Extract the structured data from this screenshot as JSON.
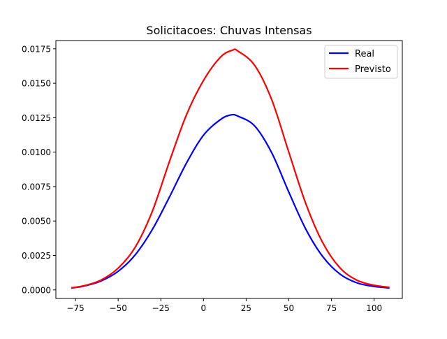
{
  "chart_data": {
    "type": "line",
    "title": "Solicitacoes: Chuvas Intensas",
    "xlabel": "",
    "ylabel": "",
    "xlim": [
      -86.5,
      116.5
    ],
    "ylim": [
      -0.00062,
      0.0181
    ],
    "x_ticks": [
      -75,
      -50,
      -25,
      0,
      25,
      50,
      75,
      100
    ],
    "x_tick_labels": [
      "−75",
      "−50",
      "−25",
      "0",
      "25",
      "50",
      "75",
      "100"
    ],
    "y_ticks": [
      0.0,
      0.0025,
      0.005,
      0.0075,
      0.01,
      0.0125,
      0.015,
      0.0175
    ],
    "y_tick_labels": [
      "0.0000",
      "0.0025",
      "0.0050",
      "0.0075",
      "0.0100",
      "0.0125",
      "0.0150",
      "0.0175"
    ],
    "grid": false,
    "legend_position": "top-right",
    "series": [
      {
        "name": "Real",
        "color": "#0000ff",
        "x": [
          -77.5,
          -70,
          -60,
          -50,
          -40,
          -30,
          -20,
          -10,
          0,
          10,
          16,
          20,
          30,
          40,
          50,
          60,
          70,
          80,
          90,
          100,
          109
        ],
        "y": [
          0.00014,
          0.00028,
          0.00065,
          0.00135,
          0.00255,
          0.00438,
          0.00673,
          0.0092,
          0.01123,
          0.01237,
          0.0127,
          0.01262,
          0.0119,
          0.00995,
          0.0071,
          0.0044,
          0.0024,
          0.00115,
          0.00051,
          0.00025,
          0.00014
        ]
      },
      {
        "name": "Previsto",
        "color": "#ff0000",
        "x": [
          -77.5,
          -70,
          -60,
          -50,
          -40,
          -30,
          -20,
          -10,
          0,
          10,
          17,
          20,
          30,
          40,
          50,
          60,
          70,
          80,
          90,
          100,
          109
        ],
        "y": [
          0.00015,
          0.0003,
          0.00072,
          0.00158,
          0.0031,
          0.0057,
          0.0093,
          0.0127,
          0.0152,
          0.0169,
          0.0174,
          0.01735,
          0.0163,
          0.0138,
          0.01,
          0.00625,
          0.0034,
          0.0016,
          0.0007,
          0.00034,
          0.00019
        ]
      }
    ]
  }
}
